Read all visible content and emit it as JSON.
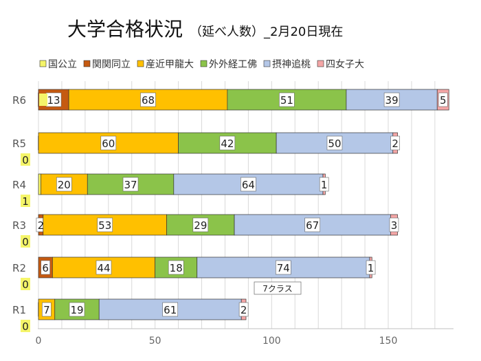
{
  "chart_data": {
    "type": "bar",
    "orientation": "horizontal",
    "stacked": true,
    "title": "大学合格状況",
    "subtitle": "（延べ人数）_2月20日現在",
    "categories": [
      "R6",
      "R5",
      "R4",
      "R3",
      "R2",
      "R1"
    ],
    "series": [
      {
        "name": "国公立",
        "color": "#f5f56a",
        "values": [
          0,
          0,
          1,
          0,
          0,
          0
        ]
      },
      {
        "name": "関関同立",
        "color": "#c55a11",
        "values": [
          13,
          0,
          0,
          2,
          6,
          0
        ]
      },
      {
        "name": "産近甲龍大",
        "color": "#ffc000",
        "values": [
          68,
          60,
          20,
          53,
          44,
          7
        ]
      },
      {
        "name": "外外経工佛",
        "color": "#8bc34a",
        "values": [
          51,
          42,
          37,
          29,
          18,
          19
        ]
      },
      {
        "name": "摂神追桃",
        "color": "#b4c7e7",
        "values": [
          39,
          50,
          64,
          67,
          74,
          61
        ]
      },
      {
        "name": "四女子大",
        "color": "#f4a6a6",
        "values": [
          5,
          2,
          1,
          3,
          1,
          2
        ]
      }
    ],
    "xlim": [
      0,
      180
    ],
    "xticks": [
      0,
      50,
      100,
      150
    ],
    "grid": true,
    "legend": "top",
    "annotations": [
      {
        "category": "R2",
        "text": "7クラス"
      }
    ]
  }
}
